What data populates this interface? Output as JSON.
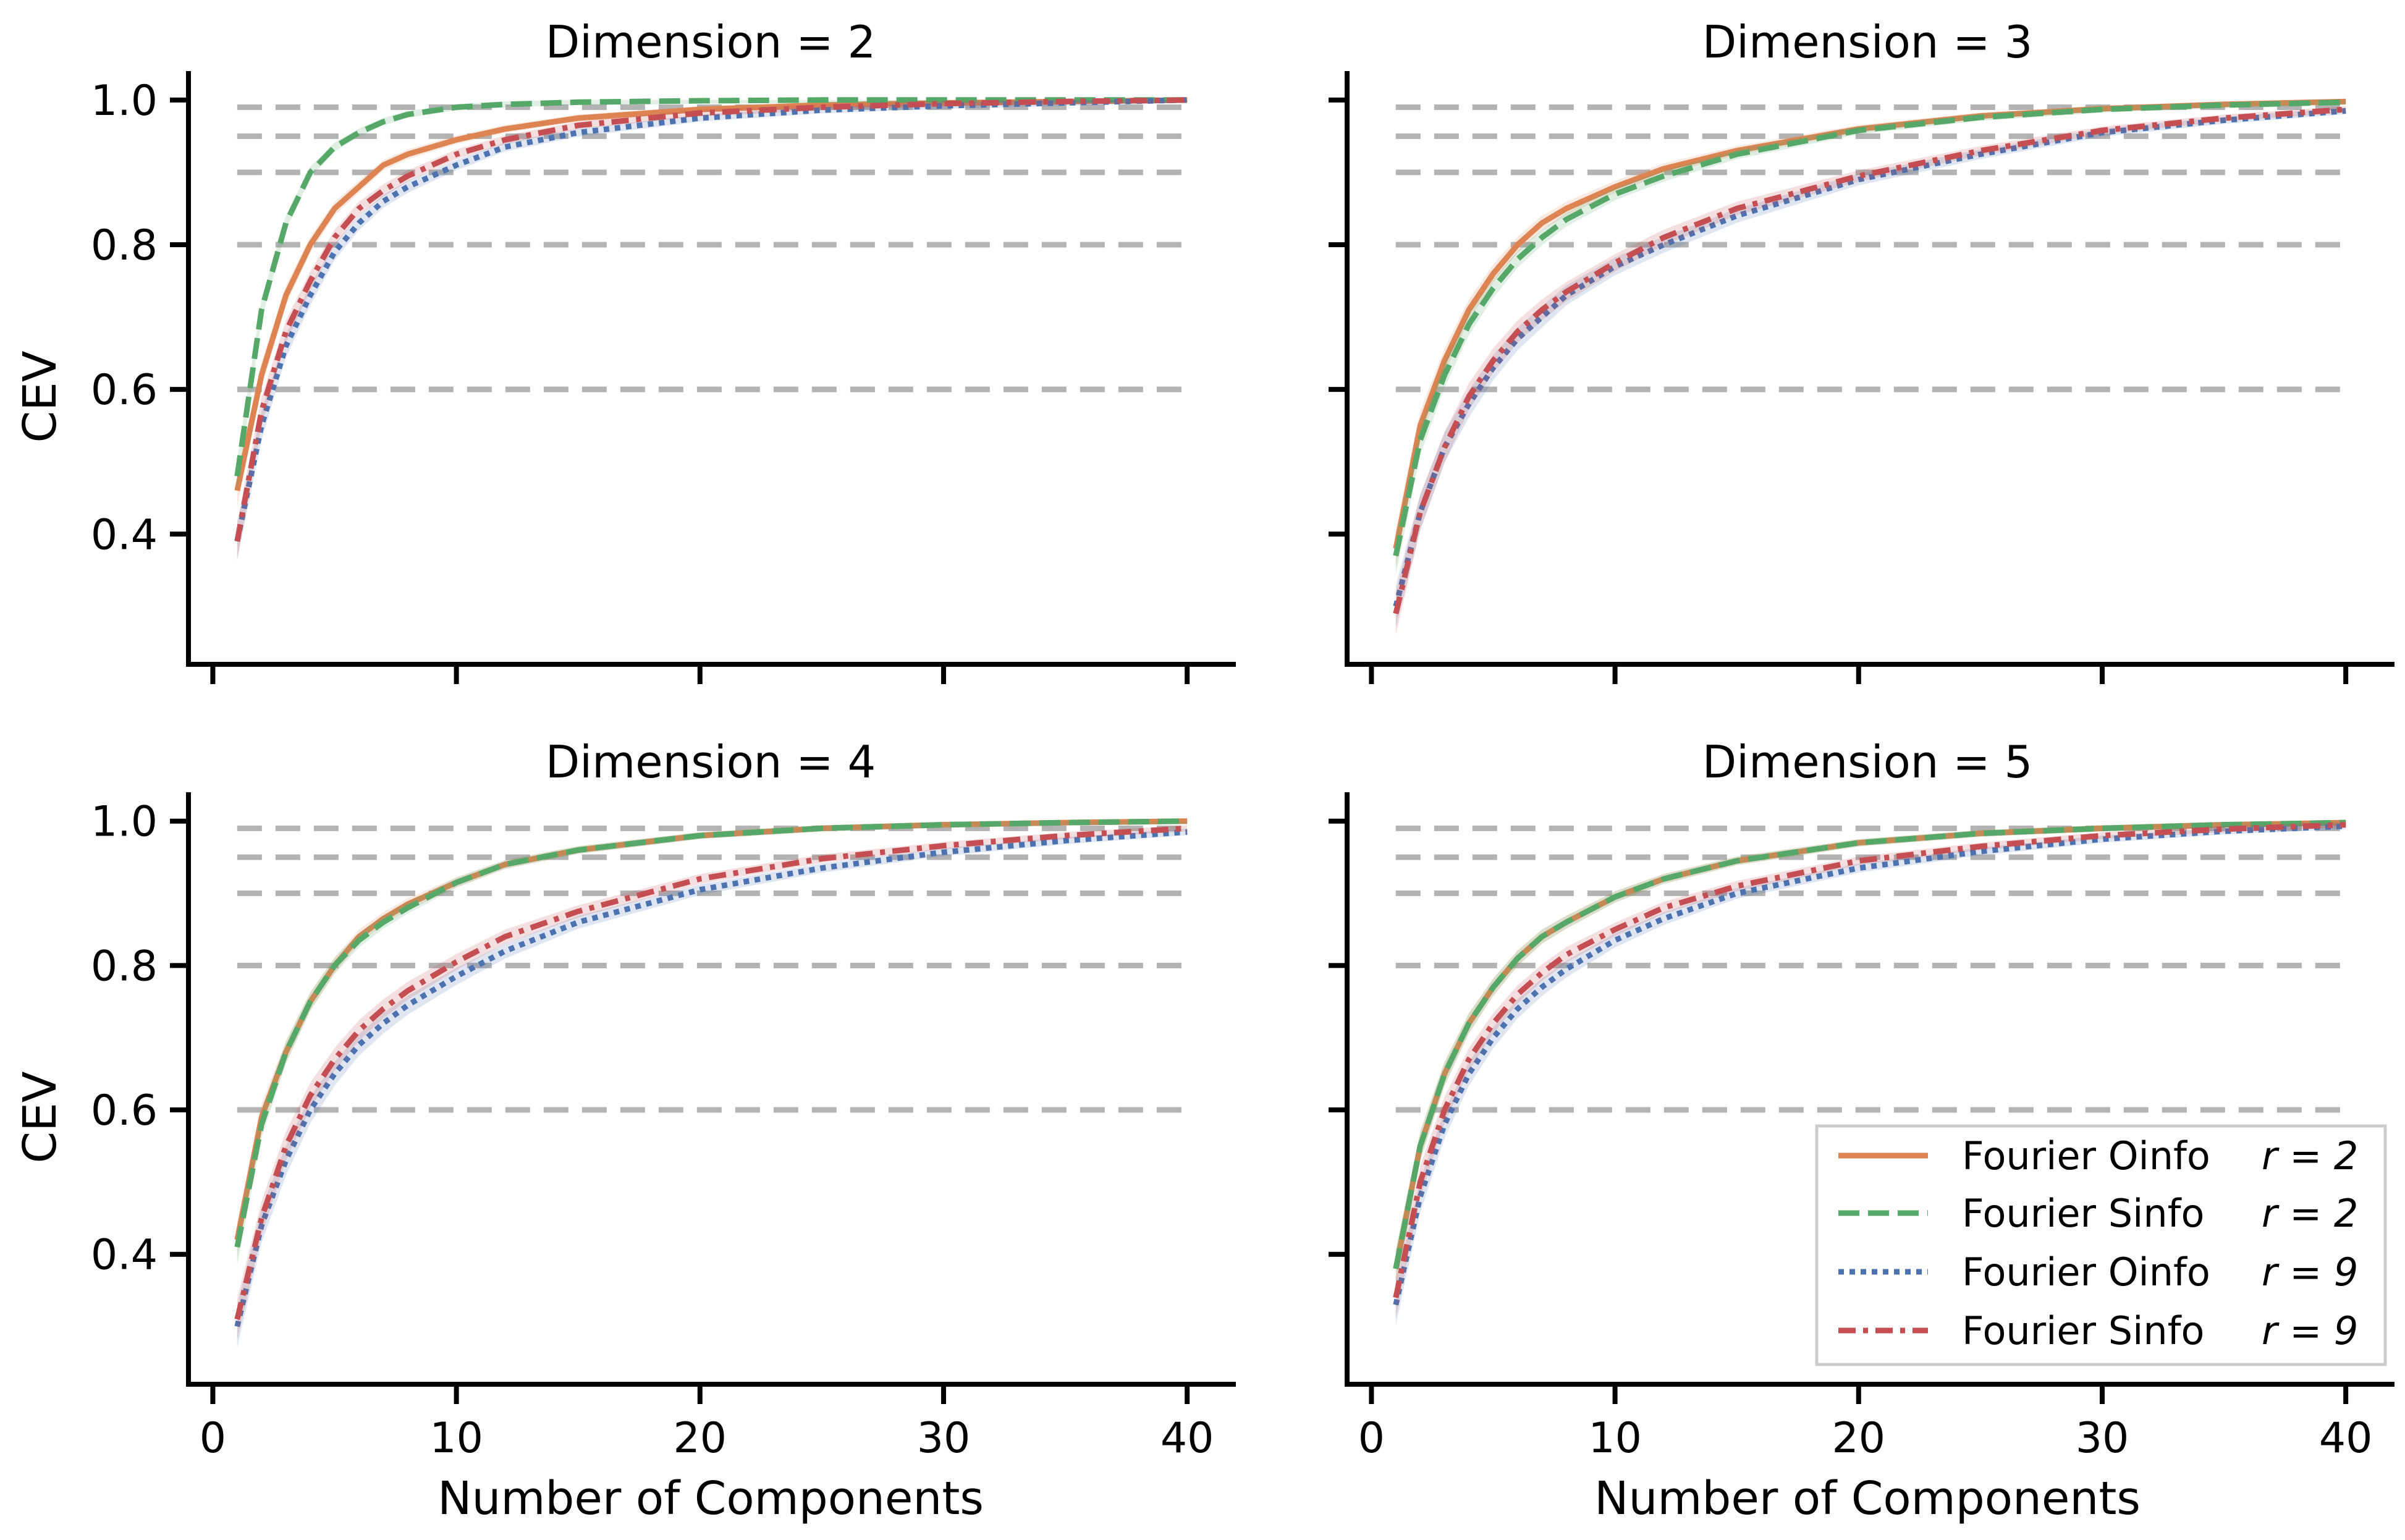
{
  "figure": {
    "ylabel": "CEV",
    "xlabel": "Number of Components"
  },
  "legend": {
    "placement": "lower-right of Dimension = 5 panel",
    "entries": [
      {
        "label": "Fourier Oinfo",
        "r_label": "r = 2",
        "color": "#dd8452",
        "style": "solid"
      },
      {
        "label": "Fourier Sinfo",
        "r_label": "r = 2",
        "color": "#55a868",
        "style": "dashed"
      },
      {
        "label": "Fourier Oinfo",
        "r_label": "r = 9",
        "color": "#4c72b0",
        "style": "dotted"
      },
      {
        "label": "Fourier Sinfo",
        "r_label": "r = 9",
        "color": "#c44e52",
        "style": "dashdot"
      }
    ]
  },
  "chart_data": [
    {
      "type": "line",
      "title": "Dimension = 2",
      "xlabel": "",
      "ylabel": "CEV",
      "xlim": [
        -1,
        42
      ],
      "ylim": [
        0.22,
        1.04
      ],
      "xticks": [
        0,
        10,
        20,
        30,
        40
      ],
      "yticks": [
        0.4,
        0.6,
        0.8,
        1.0
      ],
      "reference_lines": [
        0.6,
        0.8,
        0.9,
        0.95,
        0.99
      ],
      "x": [
        1,
        2,
        3,
        4,
        5,
        6,
        7,
        8,
        10,
        12,
        15,
        20,
        25,
        30,
        35,
        40
      ],
      "series": [
        {
          "name": "Fourier Oinfo r = 2",
          "values": [
            0.46,
            0.62,
            0.73,
            0.8,
            0.85,
            0.88,
            0.91,
            0.925,
            0.945,
            0.96,
            0.975,
            0.987,
            0.993,
            0.996,
            0.998,
            1.0
          ]
        },
        {
          "name": "Fourier Sinfo r = 2",
          "values": [
            0.48,
            0.71,
            0.83,
            0.9,
            0.935,
            0.955,
            0.97,
            0.98,
            0.99,
            0.994,
            0.997,
            0.999,
            1.0,
            1.0,
            1.0,
            1.0
          ]
        },
        {
          "name": "Fourier Oinfo r = 9",
          "values": [
            0.39,
            0.55,
            0.66,
            0.73,
            0.79,
            0.83,
            0.86,
            0.88,
            0.91,
            0.935,
            0.955,
            0.975,
            0.986,
            0.992,
            0.996,
            1.0
          ]
        },
        {
          "name": "Fourier Sinfo r = 9",
          "values": [
            0.39,
            0.57,
            0.68,
            0.75,
            0.81,
            0.85,
            0.875,
            0.895,
            0.925,
            0.945,
            0.965,
            0.982,
            0.99,
            0.995,
            0.998,
            1.0
          ]
        }
      ]
    },
    {
      "type": "line",
      "title": "Dimension = 3",
      "xlabel": "",
      "ylabel": "",
      "xlim": [
        -1,
        42
      ],
      "ylim": [
        0.22,
        1.04
      ],
      "xticks": [
        0,
        10,
        20,
        30,
        40
      ],
      "yticks": [
        0.4,
        0.6,
        0.8,
        1.0
      ],
      "reference_lines": [
        0.6,
        0.8,
        0.9,
        0.95,
        0.99
      ],
      "x": [
        1,
        2,
        3,
        4,
        5,
        6,
        7,
        8,
        10,
        12,
        15,
        20,
        25,
        30,
        35,
        40
      ],
      "series": [
        {
          "name": "Fourier Oinfo r = 2",
          "values": [
            0.38,
            0.55,
            0.64,
            0.71,
            0.76,
            0.8,
            0.83,
            0.85,
            0.88,
            0.905,
            0.93,
            0.96,
            0.978,
            0.988,
            0.994,
            0.998
          ]
        },
        {
          "name": "Fourier Sinfo r = 2",
          "values": [
            0.37,
            0.53,
            0.62,
            0.69,
            0.74,
            0.78,
            0.81,
            0.835,
            0.87,
            0.895,
            0.925,
            0.958,
            0.976,
            0.987,
            0.993,
            0.997
          ]
        },
        {
          "name": "Fourier Oinfo r = 9",
          "values": [
            0.3,
            0.43,
            0.52,
            0.58,
            0.63,
            0.67,
            0.7,
            0.73,
            0.77,
            0.8,
            0.84,
            0.89,
            0.925,
            0.955,
            0.972,
            0.985
          ]
        },
        {
          "name": "Fourier Sinfo r = 9",
          "values": [
            0.29,
            0.43,
            0.52,
            0.59,
            0.64,
            0.68,
            0.71,
            0.735,
            0.775,
            0.81,
            0.85,
            0.895,
            0.93,
            0.958,
            0.975,
            0.987
          ]
        }
      ]
    },
    {
      "type": "line",
      "title": "Dimension = 4",
      "xlabel": "Number of Components",
      "ylabel": "CEV",
      "xlim": [
        -1,
        42
      ],
      "ylim": [
        0.22,
        1.04
      ],
      "xticks": [
        0,
        10,
        20,
        30,
        40
      ],
      "yticks": [
        0.4,
        0.6,
        0.8,
        1.0
      ],
      "reference_lines": [
        0.6,
        0.8,
        0.9,
        0.95,
        0.99
      ],
      "x": [
        1,
        2,
        3,
        4,
        5,
        6,
        7,
        8,
        10,
        12,
        15,
        20,
        25,
        30,
        35,
        40
      ],
      "series": [
        {
          "name": "Fourier Oinfo r = 2",
          "values": [
            0.42,
            0.59,
            0.68,
            0.75,
            0.8,
            0.84,
            0.865,
            0.885,
            0.915,
            0.94,
            0.96,
            0.98,
            0.99,
            0.995,
            0.998,
            1.0
          ]
        },
        {
          "name": "Fourier Sinfo r = 2",
          "values": [
            0.41,
            0.58,
            0.68,
            0.75,
            0.8,
            0.835,
            0.86,
            0.88,
            0.915,
            0.94,
            0.96,
            0.98,
            0.99,
            0.995,
            0.998,
            1.0
          ]
        },
        {
          "name": "Fourier Oinfo r = 9",
          "values": [
            0.3,
            0.44,
            0.53,
            0.6,
            0.65,
            0.69,
            0.72,
            0.745,
            0.785,
            0.82,
            0.86,
            0.905,
            0.935,
            0.957,
            0.973,
            0.985
          ]
        },
        {
          "name": "Fourier Sinfo r = 9",
          "values": [
            0.31,
            0.45,
            0.55,
            0.62,
            0.67,
            0.71,
            0.74,
            0.765,
            0.805,
            0.84,
            0.875,
            0.92,
            0.948,
            0.966,
            0.98,
            0.99
          ]
        }
      ]
    },
    {
      "type": "line",
      "title": "Dimension = 5",
      "xlabel": "Number of Components",
      "ylabel": "",
      "xlim": [
        -1,
        42
      ],
      "ylim": [
        0.22,
        1.04
      ],
      "xticks": [
        0,
        10,
        20,
        30,
        40
      ],
      "yticks": [
        0.4,
        0.6,
        0.8,
        1.0
      ],
      "reference_lines": [
        0.6,
        0.8,
        0.9,
        0.95,
        0.99
      ],
      "x": [
        1,
        2,
        3,
        4,
        5,
        6,
        7,
        8,
        10,
        12,
        15,
        20,
        25,
        30,
        35,
        40
      ],
      "series": [
        {
          "name": "Fourier Oinfo r = 2",
          "values": [
            0.38,
            0.55,
            0.65,
            0.72,
            0.77,
            0.81,
            0.84,
            0.86,
            0.895,
            0.92,
            0.945,
            0.97,
            0.983,
            0.99,
            0.995,
            0.998
          ]
        },
        {
          "name": "Fourier Sinfo r = 2",
          "values": [
            0.38,
            0.55,
            0.65,
            0.72,
            0.77,
            0.81,
            0.84,
            0.86,
            0.895,
            0.92,
            0.945,
            0.97,
            0.983,
            0.99,
            0.995,
            0.998
          ]
        },
        {
          "name": "Fourier Oinfo r = 9",
          "values": [
            0.33,
            0.48,
            0.58,
            0.65,
            0.7,
            0.74,
            0.77,
            0.795,
            0.835,
            0.865,
            0.9,
            0.935,
            0.958,
            0.975,
            0.986,
            0.993
          ]
        },
        {
          "name": "Fourier Sinfo r = 9",
          "values": [
            0.34,
            0.5,
            0.6,
            0.67,
            0.72,
            0.76,
            0.79,
            0.815,
            0.85,
            0.88,
            0.91,
            0.945,
            0.965,
            0.98,
            0.989,
            0.995
          ]
        }
      ]
    }
  ]
}
